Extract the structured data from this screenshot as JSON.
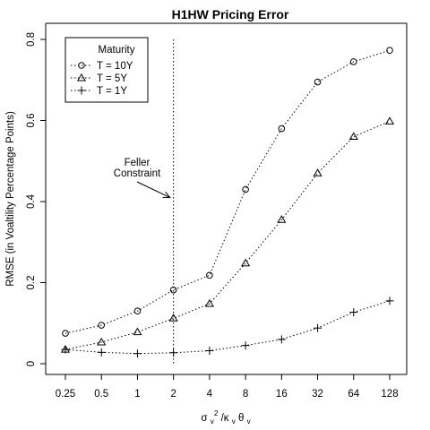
{
  "chart_data": {
    "type": "line",
    "title": "H1HW Pricing Error",
    "ylabel": "RMSE (in Voaltility Percentage Points)",
    "xlabel": {
      "sigma": "σ",
      "sub_v": "v",
      "sup_2": "2",
      "rest": "/κ",
      "sub_v2": "v",
      "theta": "θ",
      "sub_v3": "v"
    },
    "x": [
      0.25,
      0.5,
      1,
      2,
      4,
      8,
      16,
      32,
      64,
      128
    ],
    "x_tick_labels": [
      "0.25",
      "0.5",
      "1",
      "2",
      "4",
      "8",
      "16",
      "32",
      "64",
      "128"
    ],
    "x_scale": "log2",
    "ylim": [
      0,
      0.8
    ],
    "y_ticks": [
      0,
      0.2,
      0.4,
      0.6,
      0.8
    ],
    "y_tick_labels": [
      "0",
      "0.2",
      "0.4",
      "0.6",
      "0.8"
    ],
    "legend": {
      "title": "Maturity",
      "position": "top-left"
    },
    "series": [
      {
        "name": "T = 10Y",
        "marker": "circle",
        "values": [
          0.075,
          0.095,
          0.13,
          0.182,
          0.218,
          0.43,
          0.58,
          0.695,
          0.745,
          0.773
        ]
      },
      {
        "name": "T = 5Y",
        "marker": "triangle",
        "values": [
          0.035,
          0.053,
          0.078,
          0.112,
          0.148,
          0.248,
          0.355,
          0.47,
          0.56,
          0.598
        ]
      },
      {
        "name": "T = 1Y",
        "marker": "plus",
        "values": [
          0.035,
          0.028,
          0.025,
          0.027,
          0.032,
          0.045,
          0.06,
          0.088,
          0.127,
          0.155
        ]
      }
    ],
    "vertical_line": {
      "x": 2,
      "style": "dotted"
    },
    "annotation": {
      "lines": [
        "Feller",
        "Constraint"
      ],
      "arrow_to": {
        "x": 2,
        "y": 0.41
      }
    }
  }
}
